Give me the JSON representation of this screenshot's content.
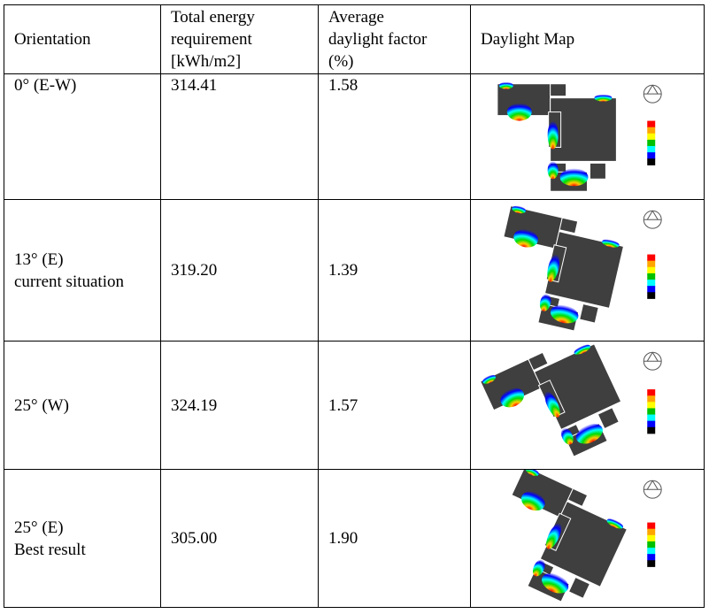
{
  "headers": {
    "orientation": "Orientation",
    "energy": [
      "Total energy",
      "requirement",
      "[kWh/m2]"
    ],
    "daylight": [
      "Average",
      "daylight factor",
      "(%)"
    ],
    "map": "Daylight Map"
  },
  "rows": [
    {
      "orientation": [
        "0° (E-W)"
      ],
      "energy": "314.41",
      "daylight": "1.58",
      "rotation": 0
    },
    {
      "orientation": [
        "13° (E)",
        "current situation"
      ],
      "energy": "319.20",
      "daylight": "1.39",
      "rotation": 13
    },
    {
      "orientation": [
        "25° (W)"
      ],
      "energy": "324.19",
      "daylight": "1.57",
      "rotation": -25
    },
    {
      "orientation": [
        "25° (E)",
        "Best result"
      ],
      "energy": "305.00",
      "daylight": "1.90",
      "rotation": 25
    }
  ],
  "colors": {
    "floor": "#3f3f3f",
    "scale": [
      "#ff0000",
      "#ffa500",
      "#ffff00",
      "#00c000",
      "#00ffff",
      "#0000ff",
      "#000000"
    ]
  }
}
